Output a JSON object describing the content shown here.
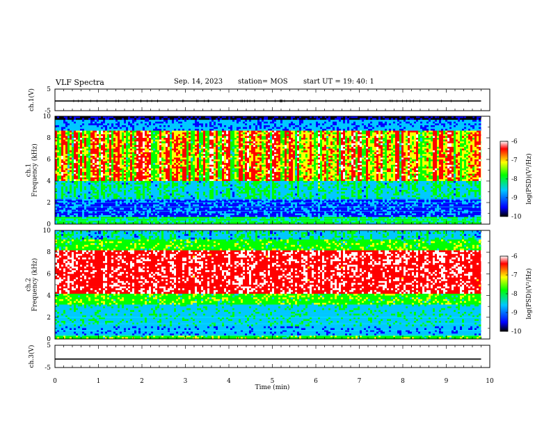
{
  "header": {
    "title": "VLF Spectra",
    "date": "Sep. 14, 2023",
    "station": "station= MOS",
    "start": "start  UT =   19: 40: 1"
  },
  "chart_data": [
    {
      "type": "line",
      "panel": "ch1-waveform",
      "ylabel": "ch.1(V)",
      "ylim": [
        -5,
        5
      ],
      "yticks": [
        "5",
        "-5"
      ],
      "x": [
        0,
        9.8
      ],
      "values": [
        -0.5,
        -0.5
      ]
    },
    {
      "type": "heatmap",
      "panel": "ch1-spectrogram",
      "ylabel": "ch.1\nFrequency (kHz)",
      "ylim": [
        0,
        10
      ],
      "yticks": [
        "0",
        "2",
        "4",
        "6",
        "8",
        "10"
      ],
      "xlim": [
        0,
        10
      ],
      "colorbar": {
        "label": "log(PSD)(V²/Hz)",
        "range": [
          -10,
          -6
        ],
        "ticks": [
          "-6",
          "-7",
          "-8",
          "-9",
          "-10"
        ]
      }
    },
    {
      "type": "heatmap",
      "panel": "ch2-spectrogram",
      "ylabel": "ch.2\nFrequency (kHz)",
      "ylim": [
        0,
        10
      ],
      "yticks": [
        "0",
        "2",
        "4",
        "6",
        "8",
        "10"
      ],
      "xlim": [
        0,
        10
      ],
      "colorbar": {
        "label": "log(PSD)(V²/Hz)",
        "range": [
          -10,
          -6
        ],
        "ticks": [
          "-6",
          "-7",
          "-8",
          "-9",
          "-10"
        ]
      }
    },
    {
      "type": "line",
      "panel": "ch3-waveform",
      "ylabel": "ch.3(V)",
      "ylim": [
        -5,
        5
      ],
      "yticks": [
        "5",
        "-5"
      ],
      "x": [
        0,
        9.8
      ],
      "values": [
        -1.2,
        -1.2
      ]
    }
  ],
  "xaxis": {
    "label": "Time  (min)",
    "ticks": [
      "0",
      "1",
      "2",
      "3",
      "4",
      "5",
      "6",
      "7",
      "8",
      "9",
      "10"
    ],
    "range": [
      0,
      10
    ],
    "data_end": 9.8
  },
  "colormap": [
    "#000000",
    "#0000ff",
    "#00c8ff",
    "#00ff00",
    "#ffff00",
    "#ff0000",
    "#ffffff"
  ]
}
